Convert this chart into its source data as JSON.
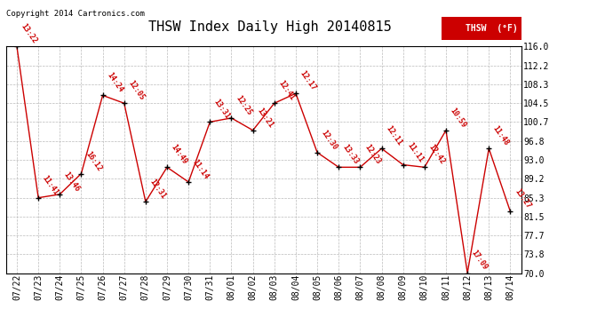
{
  "title": "THSW Index Daily High 20140815",
  "copyright": "Copyright 2014 Cartronics.com",
  "legend_label": "THSW  (°F)",
  "dates": [
    "07/22",
    "07/23",
    "07/24",
    "07/25",
    "07/26",
    "07/27",
    "07/28",
    "07/29",
    "07/30",
    "07/31",
    "08/01",
    "08/02",
    "08/03",
    "08/04",
    "08/05",
    "08/06",
    "08/07",
    "08/08",
    "08/09",
    "08/10",
    "08/11",
    "08/12",
    "08/13",
    "08/14"
  ],
  "values": [
    116.0,
    85.3,
    86.0,
    90.2,
    106.1,
    104.5,
    84.5,
    91.5,
    88.5,
    100.7,
    101.5,
    99.0,
    104.5,
    106.5,
    94.5,
    91.5,
    91.5,
    95.3,
    92.0,
    91.5,
    99.0,
    70.0,
    95.3,
    82.5
  ],
  "labels": [
    "13:22",
    "11:41",
    "13:46",
    "16:12",
    "14:24",
    "12:05",
    "12:31",
    "14:49",
    "11:14",
    "13:31",
    "12:25",
    "13:21",
    "12:41",
    "12:17",
    "12:30",
    "13:33",
    "12:23",
    "12:11",
    "11:11",
    "12:42",
    "10:59",
    "17:09",
    "11:48",
    "13:27"
  ],
  "ylim_min": 70.0,
  "ylim_max": 116.0,
  "yticks": [
    70.0,
    73.8,
    77.7,
    81.5,
    85.3,
    89.2,
    93.0,
    96.8,
    100.7,
    104.5,
    108.3,
    112.2,
    116.0
  ],
  "line_color": "#cc0000",
  "marker_color": "#000000",
  "bg_color": "#ffffff",
  "grid_color": "#bbbbbb",
  "label_color": "#cc0000",
  "title_color": "#000000",
  "legend_bg": "#cc0000",
  "legend_text_color": "#ffffff",
  "title_fontsize": 11,
  "tick_fontsize": 7,
  "label_fontsize": 6,
  "copyright_fontsize": 6.5
}
